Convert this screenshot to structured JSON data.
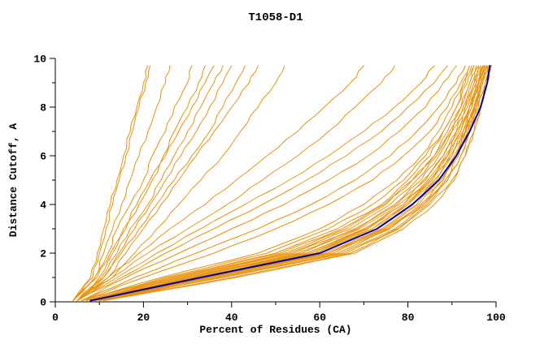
{
  "chart_data": {
    "type": "line",
    "title": "T1058-D1",
    "xlabel": "Percent of Residues (CA)",
    "ylabel": "Distance Cutoff, A",
    "xlim": [
      0,
      100
    ],
    "ylim": [
      0,
      10
    ],
    "grid": false,
    "legend": "none",
    "x_major_ticks": [
      0,
      20,
      40,
      60,
      80,
      100
    ],
    "x_minor_ticks": [
      10,
      30,
      50,
      70,
      90
    ],
    "y_major_ticks": [
      0,
      2,
      4,
      6,
      8,
      10
    ],
    "y_minor_ticks": [
      1,
      3,
      5,
      7,
      9
    ],
    "colors": {
      "model": "#e8920e",
      "highlight": "#0000a0",
      "axis": "#000000",
      "background": "#ffffff"
    },
    "y_grid": [
      0.05,
      1,
      2,
      3,
      4,
      5,
      6,
      7,
      8,
      9,
      9.7
    ],
    "series": [
      {
        "name": "model-01",
        "color": "#e8920e",
        "width": 1,
        "x": [
          7,
          28,
          52,
          66,
          75,
          81,
          86,
          89,
          92,
          94,
          95
        ]
      },
      {
        "name": "model-02",
        "color": "#e8920e",
        "width": 1,
        "x": [
          9,
          35,
          62,
          75,
          83,
          88,
          91,
          93,
          95,
          97,
          98
        ]
      },
      {
        "name": "model-03",
        "color": "#e8920e",
        "width": 1,
        "x": [
          8,
          30,
          57,
          70,
          79,
          85,
          89,
          92,
          94,
          96,
          97
        ]
      },
      {
        "name": "model-04",
        "color": "#e8920e",
        "width": 1,
        "x": [
          6,
          26,
          50,
          64,
          74,
          80,
          85,
          88,
          91,
          93,
          94.5
        ]
      },
      {
        "name": "model-05",
        "color": "#e8920e",
        "width": 1,
        "x": [
          10,
          38,
          65,
          77,
          84,
          89,
          92,
          94,
          96,
          97.5,
          98.5
        ]
      },
      {
        "name": "model-06",
        "color": "#e8920e",
        "width": 1,
        "x": [
          8,
          32,
          58,
          72,
          80,
          86,
          90,
          93,
          95,
          96.5,
          97.5
        ]
      },
      {
        "name": "model-07",
        "color": "#e8920e",
        "width": 1,
        "x": [
          7,
          29,
          54,
          68,
          77,
          83,
          87,
          90,
          93,
          95,
          96
        ]
      },
      {
        "name": "model-08",
        "color": "#e8920e",
        "width": 1,
        "x": [
          11,
          40,
          67,
          78,
          85,
          90,
          93,
          95,
          96.5,
          98,
          99
        ]
      },
      {
        "name": "model-09",
        "color": "#e8920e",
        "width": 1,
        "x": [
          8,
          31,
          56,
          69,
          78,
          84,
          88,
          91,
          93.5,
          95.5,
          96.5
        ]
      },
      {
        "name": "model-10",
        "color": "#e8920e",
        "width": 1,
        "x": [
          9,
          34,
          61,
          74,
          82,
          87,
          90.5,
          93,
          95,
          96.5,
          97.5
        ]
      },
      {
        "name": "model-11",
        "color": "#e8920e",
        "width": 1,
        "x": [
          6,
          25,
          48,
          62,
          72,
          79,
          84,
          88,
          91,
          93.5,
          95
        ]
      },
      {
        "name": "model-12",
        "color": "#e8920e",
        "width": 1,
        "x": [
          8,
          33,
          59,
          72,
          80,
          85.5,
          89.5,
          92.5,
          94.5,
          96,
          97
        ]
      },
      {
        "name": "model-13",
        "color": "#e8920e",
        "width": 1,
        "x": [
          10,
          37,
          64,
          76,
          83.5,
          88.5,
          91.5,
          93.5,
          95.5,
          97,
          98
        ]
      },
      {
        "name": "model-14",
        "color": "#e8920e",
        "width": 1,
        "x": [
          7,
          27,
          51,
          65,
          74.5,
          81,
          86,
          89.5,
          92,
          94,
          95.5
        ]
      },
      {
        "name": "model-15",
        "color": "#e8920e",
        "width": 1,
        "x": [
          8,
          30,
          55,
          68.5,
          77.5,
          83.5,
          88,
          91,
          93,
          95,
          96.5
        ]
      },
      {
        "name": "model-16",
        "color": "#e8920e",
        "width": 1,
        "x": [
          9,
          36,
          63,
          75.5,
          83,
          88,
          91,
          93.5,
          95.5,
          97,
          98.2
        ]
      },
      {
        "name": "model-17",
        "color": "#e8920e",
        "width": 1,
        "x": [
          8,
          31,
          57,
          70.5,
          79,
          84.5,
          88.5,
          91.5,
          94,
          95.5,
          97
        ]
      },
      {
        "name": "model-18",
        "color": "#e8920e",
        "width": 1,
        "x": [
          11,
          41,
          68,
          79,
          86,
          90.5,
          93,
          95,
          96.5,
          98,
          98.8
        ]
      },
      {
        "name": "model-19",
        "color": "#e8920e",
        "width": 1,
        "x": [
          6,
          24,
          46,
          60,
          70,
          77.5,
          83,
          87,
          90,
          92.5,
          94
        ]
      },
      {
        "name": "model-20",
        "color": "#e8920e",
        "width": 1,
        "x": [
          8,
          32,
          58,
          71,
          79.5,
          85,
          89,
          92,
          94,
          96,
          97.2
        ]
      },
      {
        "name": "model-21",
        "color": "#e8920e",
        "width": 1,
        "x": [
          10,
          38,
          66,
          77.5,
          84.5,
          89,
          92,
          94,
          96,
          97.5,
          98.5
        ]
      },
      {
        "name": "model-22",
        "color": "#e8920e",
        "width": 1,
        "x": [
          7,
          28,
          53,
          67,
          76,
          82,
          86.5,
          90,
          92.5,
          94.5,
          96
        ]
      },
      {
        "name": "model-23",
        "color": "#e8920e",
        "width": 1,
        "x": [
          9,
          34,
          60,
          73,
          81,
          86.5,
          90,
          92.5,
          94.5,
          96.2,
          97.3
        ]
      },
      {
        "name": "model-24",
        "color": "#e8920e",
        "width": 1,
        "x": [
          9,
          35,
          62,
          74.5,
          82.5,
          87.5,
          91,
          93.2,
          95.2,
          96.8,
          97.8
        ]
      },
      {
        "name": "model-25",
        "color": "#e8920e",
        "width": 1,
        "x": [
          6,
          18,
          32,
          46,
          58,
          68,
          76,
          82,
          87,
          91,
          93
        ]
      },
      {
        "name": "model-26",
        "color": "#e8920e",
        "width": 1,
        "x": [
          6,
          16,
          28,
          40,
          52,
          62,
          71,
          78,
          84,
          88,
          91
        ]
      },
      {
        "name": "model-27",
        "color": "#e8920e",
        "width": 1,
        "x": [
          5,
          15,
          25,
          36,
          47,
          57,
          66,
          74,
          80,
          86,
          89
        ]
      },
      {
        "name": "model-28",
        "color": "#e8920e",
        "width": 1,
        "x": [
          6,
          20,
          36,
          50,
          62,
          72,
          79,
          85,
          89,
          92,
          94
        ]
      },
      {
        "name": "model-29",
        "color": "#e8920e",
        "width": 1,
        "x": [
          5,
          14,
          23,
          33,
          43,
          53,
          62,
          70,
          77,
          83,
          86
        ]
      },
      {
        "name": "model-30",
        "color": "#e8920e",
        "width": 1,
        "x": [
          5,
          13,
          21,
          30,
          39,
          47,
          55,
          62,
          68,
          74,
          77
        ]
      },
      {
        "name": "model-31",
        "color": "#e8920e",
        "width": 1,
        "x": [
          5,
          12,
          19,
          26,
          34,
          41,
          48,
          55,
          61,
          67,
          70
        ]
      },
      {
        "name": "model-32",
        "color": "#e8920e",
        "width": 1,
        "x": [
          4,
          9,
          11,
          13,
          15,
          17,
          19,
          21,
          23,
          25,
          26
        ]
      },
      {
        "name": "model-33",
        "color": "#e8920e",
        "width": 1,
        "x": [
          4,
          8.5,
          10,
          11.5,
          13,
          14.5,
          16,
          17.5,
          19,
          20.5,
          21.5
        ]
      },
      {
        "name": "model-34",
        "color": "#e8920e",
        "width": 1,
        "x": [
          5,
          10,
          13,
          16,
          19,
          22,
          25,
          28,
          31,
          34,
          36
        ]
      },
      {
        "name": "model-35",
        "color": "#e8920e",
        "width": 1,
        "x": [
          5,
          11,
          15,
          19,
          23,
          27,
          31,
          35,
          38,
          41,
          43
        ]
      },
      {
        "name": "model-36",
        "color": "#e8920e",
        "width": 1,
        "x": [
          4,
          9,
          12,
          14,
          17,
          20,
          22,
          25,
          27,
          30,
          31
        ]
      },
      {
        "name": "model-37",
        "color": "#e8920e",
        "width": 1,
        "x": [
          5,
          10.5,
          14,
          17,
          21,
          24,
          27,
          30,
          33,
          36,
          38
        ]
      },
      {
        "name": "model-38",
        "color": "#e8920e",
        "width": 1,
        "x": [
          4,
          8,
          9.5,
          11,
          12.5,
          14,
          15.5,
          17,
          18.5,
          20,
          21
        ]
      },
      {
        "name": "model-39",
        "color": "#e8920e",
        "width": 1,
        "x": [
          5,
          12,
          16,
          20,
          24,
          28,
          32,
          36,
          40,
          44,
          46
        ]
      },
      {
        "name": "model-40",
        "color": "#e8920e",
        "width": 1,
        "x": [
          4,
          9.5,
          12.5,
          15.5,
          18.5,
          21.5,
          24.5,
          27,
          30,
          32.5,
          34
        ]
      },
      {
        "name": "model-41",
        "color": "#e8920e",
        "width": 1,
        "x": [
          5,
          11,
          14.5,
          18,
          21.5,
          25,
          28.5,
          32,
          35,
          38,
          40
        ]
      },
      {
        "name": "model-42",
        "color": "#e8920e",
        "width": 1,
        "x": [
          5,
          13,
          18,
          23,
          28,
          33,
          38,
          42,
          46,
          50,
          52
        ]
      },
      {
        "name": "model-highlight",
        "color": "#0000a0",
        "width": 2,
        "x": [
          8,
          33,
          60,
          73,
          81,
          87,
          91,
          94,
          96.5,
          98,
          98.6
        ]
      }
    ]
  }
}
